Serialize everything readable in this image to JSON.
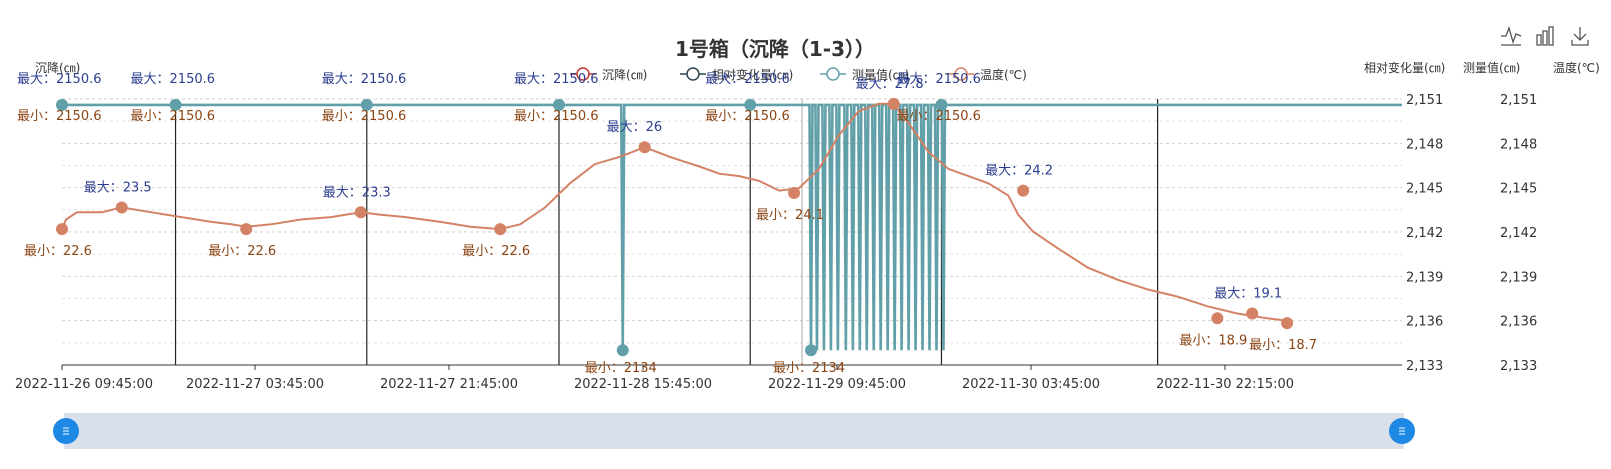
{
  "chart_data": {
    "type": "line",
    "title": "1号箱（沉降（1-3））",
    "legend": [
      {
        "name": "沉降(㎝)",
        "color": "#c23531"
      },
      {
        "name": "相对变化量(㎝)",
        "color": "#2f4554"
      },
      {
        "name": "测量值(㎝)",
        "color": "#61a0a8"
      },
      {
        "name": "温度(℃)",
        "color": "#d48265"
      }
    ],
    "legend_position": "top-center",
    "y_axes": [
      {
        "name": "沉降(㎝)",
        "position": "left",
        "ylim": [
          2133,
          2151
        ]
      },
      {
        "name": "相对变化量(㎝)",
        "position": "right",
        "ticks": [
          "2,133",
          "2,136",
          "2,139",
          "2,142",
          "2,145",
          "2,148",
          "2,151"
        ]
      },
      {
        "name": "测量值(㎝)",
        "position": "right",
        "ticks": [
          "2,133",
          "2,136",
          "2,139",
          "2,142",
          "2,145",
          "2,148",
          "2,151"
        ]
      },
      {
        "name": "温度(℃)",
        "position": "right"
      }
    ],
    "x_tick_labels": [
      "2022-11-26 09:45:00",
      "2022-11-27 03:45:00",
      "2022-11-27 21:45:00",
      "2022-11-28 15:45:00",
      "2022-11-29 09:45:00",
      "2022-11-30 03:45:00",
      "2022-11-30 22:15:00"
    ],
    "grid": "horizontal-dashed",
    "series": [
      {
        "name": "测量值(㎝)",
        "color": "#61a0a8",
        "baseline": 2150.6,
        "min": 2134,
        "drops": [
          0.563,
          0.752,
          0.758,
          0.765,
          0.772,
          0.779,
          0.787,
          0.794,
          0.801,
          0.808,
          0.815,
          0.822,
          0.829,
          0.836,
          0.843,
          0.85,
          0.857,
          0.864,
          0.871,
          0.878,
          0.885
        ],
        "section_maxima": [
          0.0,
          0.114,
          0.306,
          0.499,
          0.691,
          0.883
        ],
        "min_points": [
          0.563,
          0.752
        ]
      },
      {
        "name": "温度(℃)",
        "color": "#d48265",
        "points": [
          [
            0.0,
            22.6
          ],
          [
            0.004,
            23.0
          ],
          [
            0.015,
            23.3
          ],
          [
            0.04,
            23.3
          ],
          [
            0.06,
            23.5
          ],
          [
            0.09,
            23.3
          ],
          [
            0.12,
            23.1
          ],
          [
            0.15,
            22.9
          ],
          [
            0.17,
            22.8
          ],
          [
            0.185,
            22.7
          ],
          [
            0.21,
            22.8
          ],
          [
            0.24,
            23.0
          ],
          [
            0.27,
            23.1
          ],
          [
            0.3,
            23.3
          ],
          [
            0.32,
            23.2
          ],
          [
            0.345,
            23.1
          ],
          [
            0.38,
            22.9
          ],
          [
            0.41,
            22.7
          ],
          [
            0.44,
            22.6
          ],
          [
            0.46,
            22.8
          ],
          [
            0.485,
            23.5
          ],
          [
            0.51,
            24.5
          ],
          [
            0.535,
            25.3
          ],
          [
            0.56,
            25.6
          ],
          [
            0.585,
            26.0
          ],
          [
            0.61,
            25.6
          ],
          [
            0.625,
            25.4
          ],
          [
            0.64,
            25.2
          ],
          [
            0.66,
            24.9
          ],
          [
            0.68,
            24.8
          ],
          [
            0.7,
            24.6
          ],
          [
            0.72,
            24.2
          ],
          [
            0.74,
            24.3
          ],
          [
            0.76,
            25.1
          ],
          [
            0.78,
            26.5
          ],
          [
            0.8,
            27.5
          ],
          [
            0.82,
            27.8
          ],
          [
            0.835,
            27.8
          ],
          [
            0.85,
            27.0
          ],
          [
            0.87,
            25.8
          ],
          [
            0.89,
            25.1
          ],
          [
            0.91,
            24.8
          ],
          [
            0.93,
            24.5
          ],
          [
            0.95,
            24.0
          ],
          [
            0.96,
            23.2
          ],
          [
            0.975,
            22.5
          ],
          [
            1.0,
            21.8
          ],
          [
            1.03,
            21.0
          ],
          [
            1.06,
            20.5
          ],
          [
            1.09,
            20.1
          ],
          [
            1.12,
            19.8
          ],
          [
            1.15,
            19.4
          ],
          [
            1.18,
            19.1
          ],
          [
            1.21,
            18.9
          ],
          [
            1.23,
            18.8
          ]
        ],
        "annotations": [
          {
            "label": "最大：23.5",
            "value": 23.5,
            "t": 0.06,
            "kind": "max"
          },
          {
            "label": "最小：22.6",
            "value": 22.6,
            "t": 0.0,
            "kind": "min"
          },
          {
            "label": "最小：22.6",
            "value": 22.6,
            "t": 0.185,
            "kind": "min"
          },
          {
            "label": "最大：23.3",
            "value": 23.3,
            "t": 0.3,
            "kind": "max"
          },
          {
            "label": "最小：22.6",
            "value": 22.6,
            "t": 0.44,
            "kind": "min"
          },
          {
            "label": "最大：26",
            "value": 26.0,
            "t": 0.585,
            "kind": "max"
          },
          {
            "label": "最小：24.1",
            "value": 24.1,
            "t": 0.735,
            "kind": "min"
          },
          {
            "label": "最大：27.8",
            "value": 27.8,
            "t": 0.835,
            "kind": "max"
          },
          {
            "label": "最大：24.2",
            "value": 24.2,
            "t": 0.965,
            "kind": "max"
          },
          {
            "label": "最小：18.9",
            "value": 18.9,
            "t": 1.16,
            "kind": "min"
          },
          {
            "label": "最大：19.1",
            "value": 19.1,
            "t": 1.195,
            "kind": "max"
          },
          {
            "label": "最小：18.7",
            "value": 18.7,
            "t": 1.23,
            "kind": "min"
          }
        ]
      }
    ],
    "measured_labels": {
      "max": "最大：2150.6",
      "min": "最小：2150.6",
      "drop_min": "最小：2134"
    },
    "dividers": [
      0.114,
      0.306,
      0.499,
      0.691,
      0.883,
      1.1
    ],
    "cursor_line": 0.743
  },
  "toolbox": [
    {
      "name": "line-chart-icon"
    },
    {
      "name": "bar-chart-icon"
    },
    {
      "name": "download-icon"
    }
  ]
}
